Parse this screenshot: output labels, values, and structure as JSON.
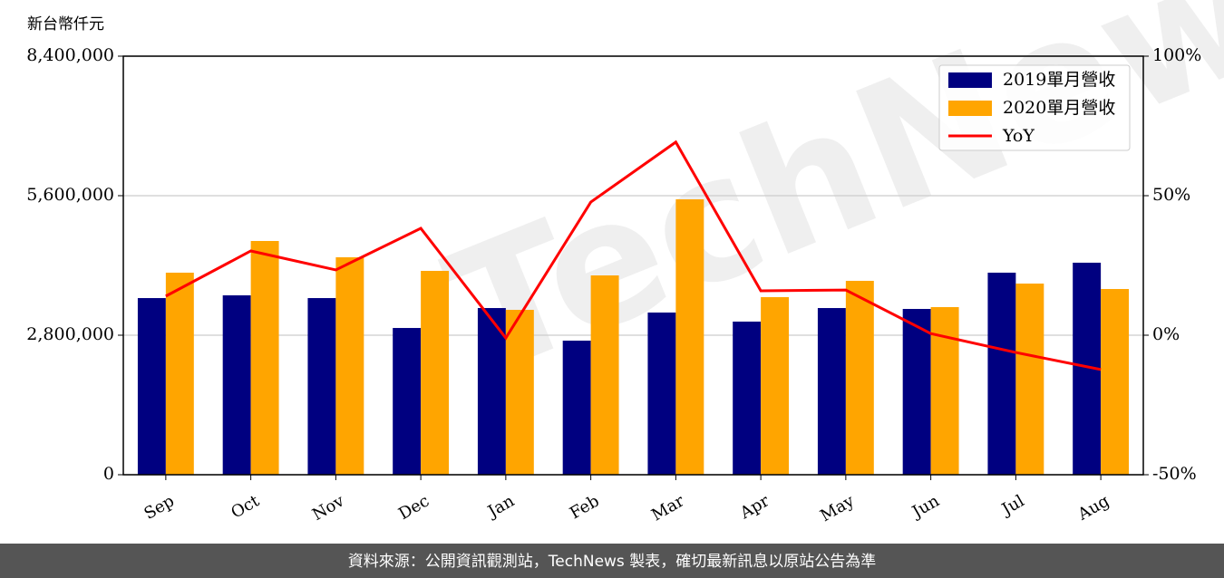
{
  "chart_data": {
    "type": "bar",
    "ylabel": "新台幣仟元",
    "watermark": "TechNews",
    "source": "資料來源：公開資訊觀測站，TechNews 製表，確切最新訊息以原站公告為準",
    "categories": [
      "Sep",
      "Oct",
      "Nov",
      "Dec",
      "Jan",
      "Feb",
      "Mar",
      "Apr",
      "May",
      "Jun",
      "Jul",
      "Aug"
    ],
    "series": [
      {
        "name": "2019單月營收",
        "color": "#000080",
        "values": [
          3545000,
          3600000,
          3545000,
          2945000,
          3345000,
          2691000,
          3255000,
          3073000,
          3345000,
          3327000,
          4055000,
          4255000
        ]
      },
      {
        "name": "2020單月營收",
        "color": "#ffa500",
        "values": [
          4055000,
          4691000,
          4364000,
          4091000,
          3309000,
          4000000,
          5527000,
          3564000,
          3891000,
          3364000,
          3836000,
          3727000
        ]
      },
      {
        "name": "YoY",
        "color": "#ff0000",
        "axis": "y2",
        "type": "line",
        "values": [
          14.0,
          30.2,
          23.4,
          38.3,
          -1.0,
          47.7,
          69.2,
          15.9,
          16.2,
          0.6,
          -6.2,
          -12.3
        ]
      }
    ],
    "ylim": [
      0,
      8400000
    ],
    "yticks": [
      0,
      {
        "value": 2800000,
        "label": "2,800,000"
      },
      {
        "value": 5600000,
        "label": "5,600,000"
      },
      {
        "value": 8400000,
        "label": "8,400,000"
      }
    ],
    "y2lim": [
      -50,
      100
    ],
    "y2ticks": [
      {
        "value": -50,
        "label": "-50%"
      },
      {
        "value": 0,
        "label": "0%"
      },
      {
        "value": 50,
        "label": "50%"
      },
      {
        "value": 100,
        "label": "100%"
      }
    ],
    "grid": true,
    "legend": "upper right"
  }
}
